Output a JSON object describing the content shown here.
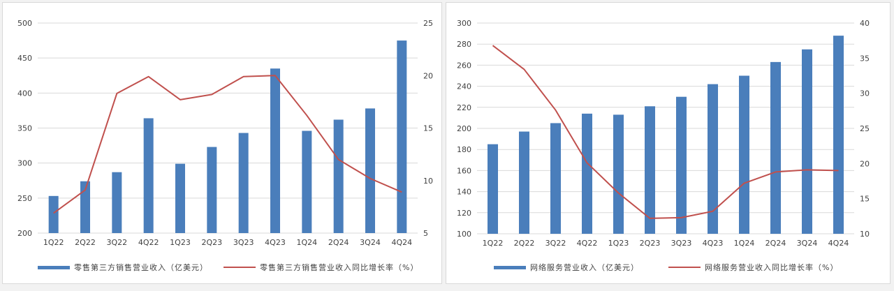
{
  "chart_data": [
    {
      "type": "bar+line",
      "categories": [
        "1Q22",
        "2Q22",
        "3Q22",
        "4Q22",
        "1Q23",
        "2Q23",
        "3Q23",
        "4Q23",
        "1Q24",
        "2Q24",
        "3Q24",
        "4Q24"
      ],
      "series": [
        {
          "name": "零售第三方销售营业收入（亿美元）",
          "type": "bar",
          "axis": "left",
          "values": [
            253,
            274,
            287,
            364,
            299,
            323,
            343,
            435,
            346,
            362,
            378,
            475
          ]
        },
        {
          "name": "零售第三方销售营业收入同比增长率（%）",
          "type": "line",
          "axis": "right",
          "values": [
            6.9,
            9.1,
            18.3,
            19.9,
            17.7,
            18.2,
            19.9,
            20.0,
            16.2,
            12.0,
            10.2,
            8.9
          ]
        }
      ],
      "ylim_left": [
        200,
        500
      ],
      "yticks_left": [
        "200",
        "250",
        "300",
        "350",
        "400",
        "450",
        "500"
      ],
      "ylim_right": [
        5,
        25
      ],
      "yticks_right": [
        "5",
        "10",
        "15",
        "20",
        "25"
      ],
      "grid": true,
      "legend": "bottom",
      "colors": {
        "bar": "#4a7ebb",
        "line": "#c0504d"
      }
    },
    {
      "type": "bar+line",
      "categories": [
        "1Q22",
        "2Q22",
        "3Q22",
        "4Q22",
        "1Q23",
        "2Q23",
        "3Q23",
        "4Q23",
        "1Q24",
        "2Q24",
        "3Q24",
        "4Q24"
      ],
      "series": [
        {
          "name": "网络服务营业收入（亿美元）",
          "type": "bar",
          "axis": "left",
          "values": [
            185,
            197,
            205,
            214,
            213,
            221,
            230,
            242,
            250,
            263,
            275,
            288
          ]
        },
        {
          "name": "网络服务营业收入同比增长率（%）",
          "type": "line",
          "axis": "right",
          "values": [
            36.8,
            33.4,
            27.6,
            20.1,
            15.8,
            12.2,
            12.3,
            13.2,
            17.2,
            18.8,
            19.1,
            19.0
          ]
        }
      ],
      "ylim_left": [
        100,
        300
      ],
      "yticks_left": [
        "100",
        "120",
        "140",
        "160",
        "180",
        "200",
        "220",
        "240",
        "260",
        "280",
        "300"
      ],
      "ylim_right": [
        10,
        40
      ],
      "yticks_right": [
        "10",
        "15",
        "20",
        "25",
        "30",
        "35",
        "40"
      ],
      "grid": true,
      "legend": "bottom",
      "colors": {
        "bar": "#4a7ebb",
        "line": "#c0504d"
      }
    }
  ]
}
